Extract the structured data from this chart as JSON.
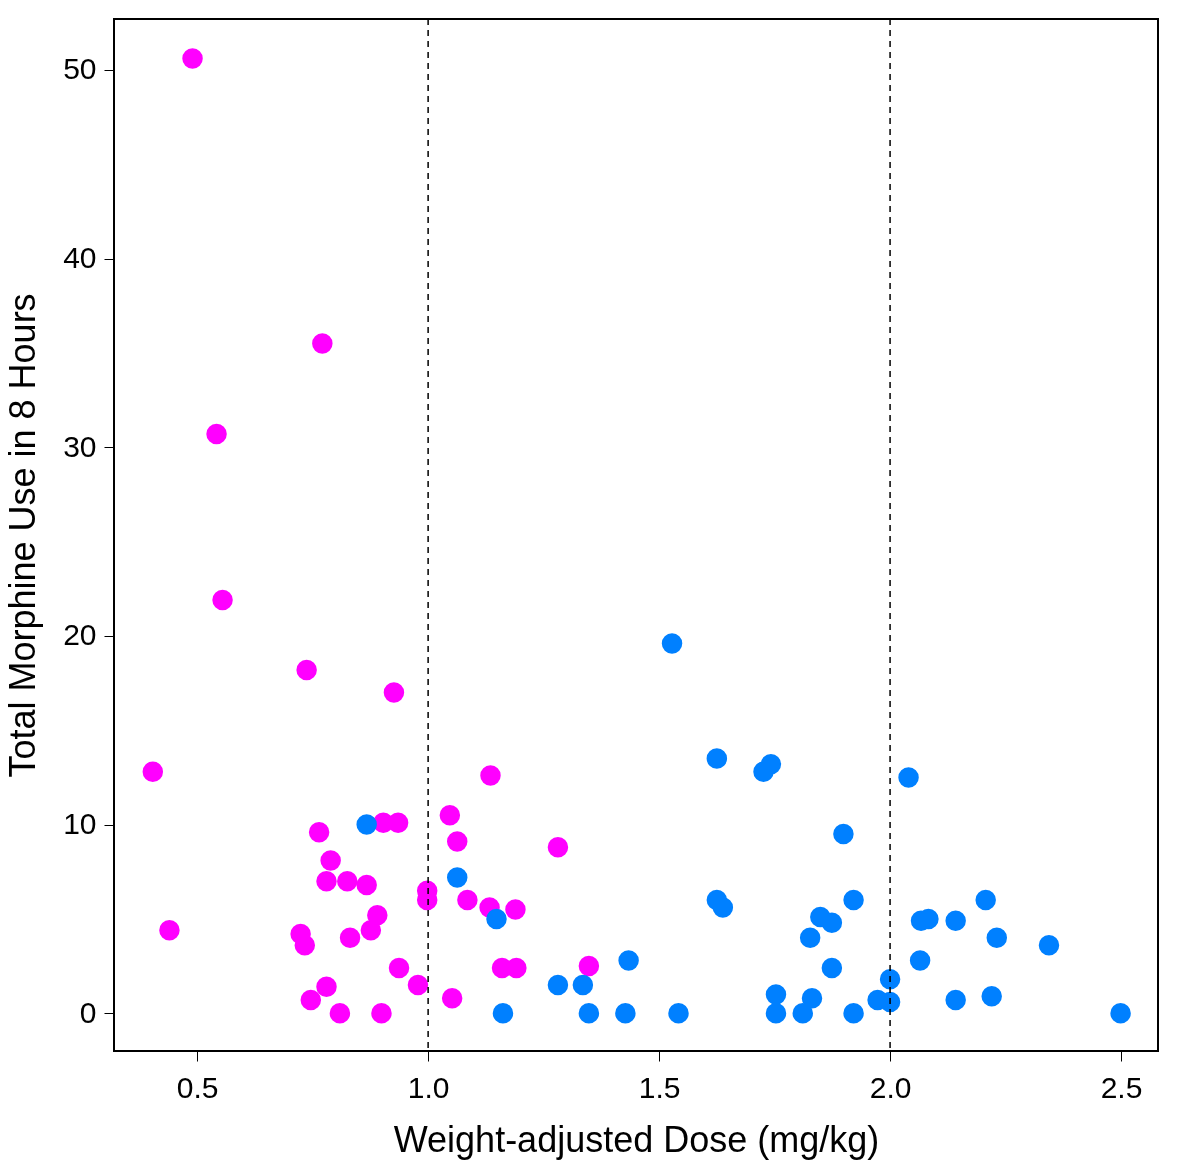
{
  "chart_data": {
    "type": "scatter",
    "xlabel": "Weight-adjusted Dose (mg/kg)",
    "ylabel": "Total Morphine Use in 8 Hours",
    "xlim": [
      0.32,
      2.58
    ],
    "ylim": [
      -2,
      52.7
    ],
    "xticks": [
      {
        "value": 0.5,
        "label": "0.5"
      },
      {
        "value": 1,
        "label": "1.0"
      },
      {
        "value": 1.5,
        "label": "1.5"
      },
      {
        "value": 2,
        "label": "2.0"
      },
      {
        "value": 2.5,
        "label": "2.5"
      }
    ],
    "yticks": [
      0,
      10,
      20,
      30,
      40,
      50
    ],
    "grid": false,
    "marker": "circle",
    "ref_lines": [
      {
        "axis": "x",
        "value": 1,
        "line_style": "dashed",
        "color": "#000000"
      },
      {
        "axis": "x",
        "value": 2,
        "line_style": "dashed",
        "color": "#000000"
      }
    ],
    "series": [
      {
        "color": "#ff00ff",
        "x": [
          0.49,
          0.771,
          0.542,
          0.555,
          0.737,
          0.926,
          0.404,
          1.135,
          1.047,
          0.935,
          0.903,
          0.764,
          1.063,
          1.281,
          0.789,
          0.78,
          0.825,
          0.867,
          0.998,
          0.998,
          1.085,
          1.133,
          1.189,
          0.89,
          0.44,
          0.876,
          0.831,
          0.724,
          0.733,
          1.348,
          0.937,
          1.16,
          1.191,
          0.978,
          0.78,
          0.746,
          1.052,
          0.809,
          0.899
        ],
        "values": [
          50.6,
          35.5,
          30.7,
          21.9,
          18.2,
          17.0,
          12.8,
          12.6,
          10.5,
          10.1,
          10.1,
          9.6,
          9.1,
          8.8,
          8.1,
          7.0,
          7.0,
          6.8,
          6.5,
          6.0,
          6.0,
          5.6,
          5.5,
          5.2,
          4.4,
          4.4,
          4.0,
          4.2,
          3.6,
          2.5,
          2.4,
          2.4,
          2.4,
          1.5,
          1.4,
          0.7,
          0.8,
          0.0,
          0.0
        ]
      },
      {
        "color": "#0080ff",
        "x": [
          1.528,
          1.625,
          1.742,
          1.726,
          2.04,
          1.899,
          1.625,
          1.638,
          1.921,
          2.207,
          1.849,
          1.874,
          2.067,
          2.083,
          2.142,
          1.827,
          2.231,
          2.344,
          1.434,
          2.065,
          1.874,
          2.0,
          1.753,
          1.831,
          1.973,
          2.0,
          2.142,
          2.22,
          1.335,
          1.348,
          1.427,
          1.542,
          1.753,
          1.811,
          1.921,
          2.499,
          0.867,
          1.063,
          1.148,
          1.281,
          1.162
        ],
        "values": [
          19.6,
          13.5,
          13.2,
          12.8,
          12.5,
          9.5,
          6.0,
          5.6,
          6.0,
          6.0,
          5.1,
          4.8,
          4.9,
          5.0,
          4.9,
          4.0,
          4.0,
          3.6,
          2.8,
          2.8,
          2.4,
          1.8,
          1.0,
          0.8,
          0.7,
          0.6,
          0.7,
          0.9,
          1.5,
          0.0,
          0.0,
          0.0,
          0.0,
          0.0,
          0.0,
          0.0,
          10.0,
          7.2,
          5.0,
          1.5,
          0.0
        ]
      }
    ]
  }
}
